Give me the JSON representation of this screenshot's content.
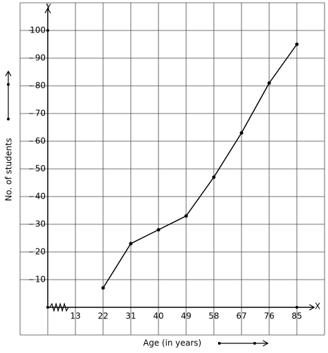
{
  "chart_data": {
    "type": "line",
    "x_label": "Age (in years)",
    "y_label": "No. of students",
    "x_axis_name": "X",
    "y_axis_name": "Y",
    "categories": [
      "13",
      "22",
      "31",
      "40",
      "49",
      "58",
      "67",
      "76",
      "85"
    ],
    "values": [
      null,
      7,
      23,
      28,
      33,
      47,
      63,
      81,
      95
    ],
    "color": "#000000",
    "ylim": [
      -10,
      110
    ],
    "yticks": [
      10,
      20,
      30,
      40,
      50,
      60,
      70,
      80,
      90,
      100
    ],
    "grid": true
  }
}
